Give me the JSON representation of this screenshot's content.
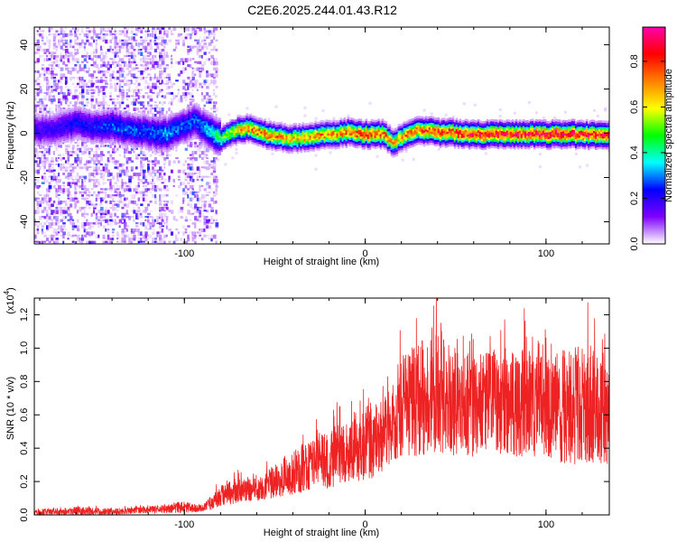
{
  "title": "C2E6.2025.244.01.43.R12",
  "chart_data": [
    {
      "type": "heatmap",
      "xlabel": "Height of straight line (km)",
      "ylabel": "Frequency (Hz)",
      "xlim": [
        -183,
        135
      ],
      "ylim": [
        -50,
        48
      ],
      "xticks": [
        -100,
        0,
        100
      ],
      "yticks": [
        -40,
        -20,
        0,
        20,
        40
      ],
      "xtick_labels": [
        "-100",
        "0",
        "100"
      ],
      "ytick_labels": [
        "-40",
        "-20",
        "0",
        "20",
        "40"
      ],
      "colorbar": {
        "label": "Normalized spectral amplitude",
        "range": [
          0,
          0.95
        ],
        "ticks": [
          0.0,
          0.2,
          0.4,
          0.6,
          0.8
        ],
        "tick_labels": [
          "0.0",
          "0.2",
          "0.4",
          "0.6",
          "0.8"
        ],
        "colormap": [
          "#ffffff",
          "#7f00ff",
          "#0000ff",
          "#00ffff",
          "#00ff00",
          "#ffff00",
          "#ff8000",
          "#ff0000",
          "#ff00aa"
        ]
      },
      "ridge": {
        "height_km": [
          -175,
          -160,
          -150,
          -140,
          -130,
          -120,
          -110,
          -100,
          -95,
          -90,
          -85,
          -80,
          -75,
          -70,
          -65,
          -60,
          -50,
          -40,
          -30,
          -20,
          -10,
          0,
          10,
          15,
          20,
          30,
          40,
          60,
          80,
          100,
          120,
          135
        ],
        "frequency_hz": [
          2,
          5,
          3,
          4,
          2,
          1,
          0,
          4,
          6,
          3,
          1,
          -2,
          1,
          2,
          3,
          1,
          -1,
          -2,
          -1,
          0,
          1,
          0,
          0,
          -4,
          -1,
          2,
          1,
          0,
          0,
          0,
          0,
          0
        ],
        "amplitude": [
          0.2,
          0.25,
          0.25,
          0.3,
          0.3,
          0.3,
          0.35,
          0.3,
          0.3,
          0.35,
          0.4,
          0.5,
          0.6,
          0.7,
          0.75,
          0.8,
          0.75,
          0.7,
          0.75,
          0.75,
          0.8,
          0.85,
          0.8,
          0.7,
          0.75,
          0.85,
          0.85,
          0.9,
          0.9,
          0.95,
          0.9,
          0.9
        ]
      }
    },
    {
      "type": "line",
      "xlabel": "Height of straight line (km)",
      "ylabel": "SNR (10 * v/v)",
      "exponent_label": "(x10",
      "exponent_power": "4",
      "exponent_close": ")",
      "xlim": [
        -183,
        135
      ],
      "ylim": [
        0,
        1.3
      ],
      "xticks": [
        -100,
        0,
        100
      ],
      "yticks": [
        0.0,
        0.2,
        0.4,
        0.6,
        0.8,
        1.0,
        1.2
      ],
      "xtick_labels": [
        "-100",
        "0",
        "100"
      ],
      "ytick_labels": [
        "0.0",
        "0.2",
        "0.4",
        "0.6",
        "0.8",
        "1.0",
        "1.2"
      ],
      "color": "#ee2222",
      "series": [
        {
          "name": "SNR",
          "x": [
            -183,
            -160,
            -140,
            -120,
            -100,
            -90,
            -85,
            -80,
            -75,
            -70,
            -60,
            -50,
            -40,
            -30,
            -20,
            -10,
            0,
            10,
            20,
            30,
            40,
            50,
            60,
            70,
            80,
            90,
            100,
            110,
            120,
            135
          ],
          "upper": [
            0.03,
            0.05,
            0.04,
            0.05,
            0.08,
            0.06,
            0.12,
            0.18,
            0.2,
            0.22,
            0.22,
            0.3,
            0.38,
            0.48,
            0.5,
            0.6,
            0.65,
            0.7,
            0.95,
            1.05,
            1.1,
            1.0,
            0.95,
            1.0,
            1.0,
            1.0,
            0.95,
            1.0,
            1.05,
            0.95
          ],
          "lower": [
            0.0,
            0.0,
            0.0,
            0.01,
            0.01,
            0.02,
            0.03,
            0.05,
            0.05,
            0.08,
            0.08,
            0.1,
            0.12,
            0.15,
            0.15,
            0.2,
            0.2,
            0.25,
            0.35,
            0.35,
            0.38,
            0.35,
            0.35,
            0.38,
            0.35,
            0.35,
            0.35,
            0.3,
            0.3,
            0.3
          ]
        }
      ]
    }
  ]
}
